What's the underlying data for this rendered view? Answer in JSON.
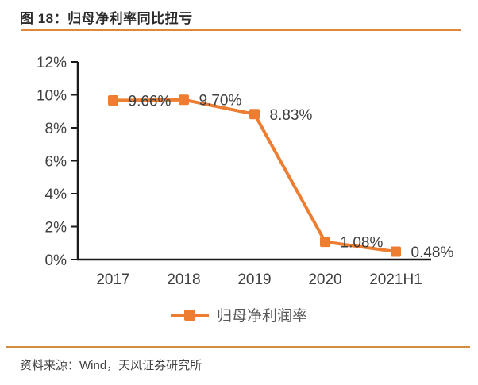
{
  "figure": {
    "title": "图 18：归母净利率同比扭亏",
    "source": "资料来源：Wind，天风证券研究所"
  },
  "chart_data": {
    "type": "line",
    "title": "图 18：归母净利率同比扭亏",
    "categories": [
      "2017",
      "2018",
      "2019",
      "2020",
      "2021H1"
    ],
    "series": [
      {
        "name": "归母净利润率",
        "values": [
          9.66,
          9.7,
          8.83,
          1.08,
          0.48
        ],
        "labels": [
          "9.66%",
          "9.70%",
          "8.83%",
          "1.08%",
          "0.48%"
        ],
        "color": "#ed7d31",
        "marker": "square"
      }
    ],
    "xlabel": "",
    "ylabel": "",
    "ylim": [
      0,
      12
    ],
    "yticks": [
      0,
      2,
      4,
      6,
      8,
      10,
      12
    ],
    "ytick_labels": [
      "0%",
      "2%",
      "4%",
      "6%",
      "8%",
      "10%",
      "12%"
    ],
    "grid": false,
    "legend_position": "bottom"
  },
  "colors": {
    "accent": "#ed7d31",
    "rule": "#e0873b",
    "axis": "#1a1a1a",
    "text": "#404040"
  }
}
